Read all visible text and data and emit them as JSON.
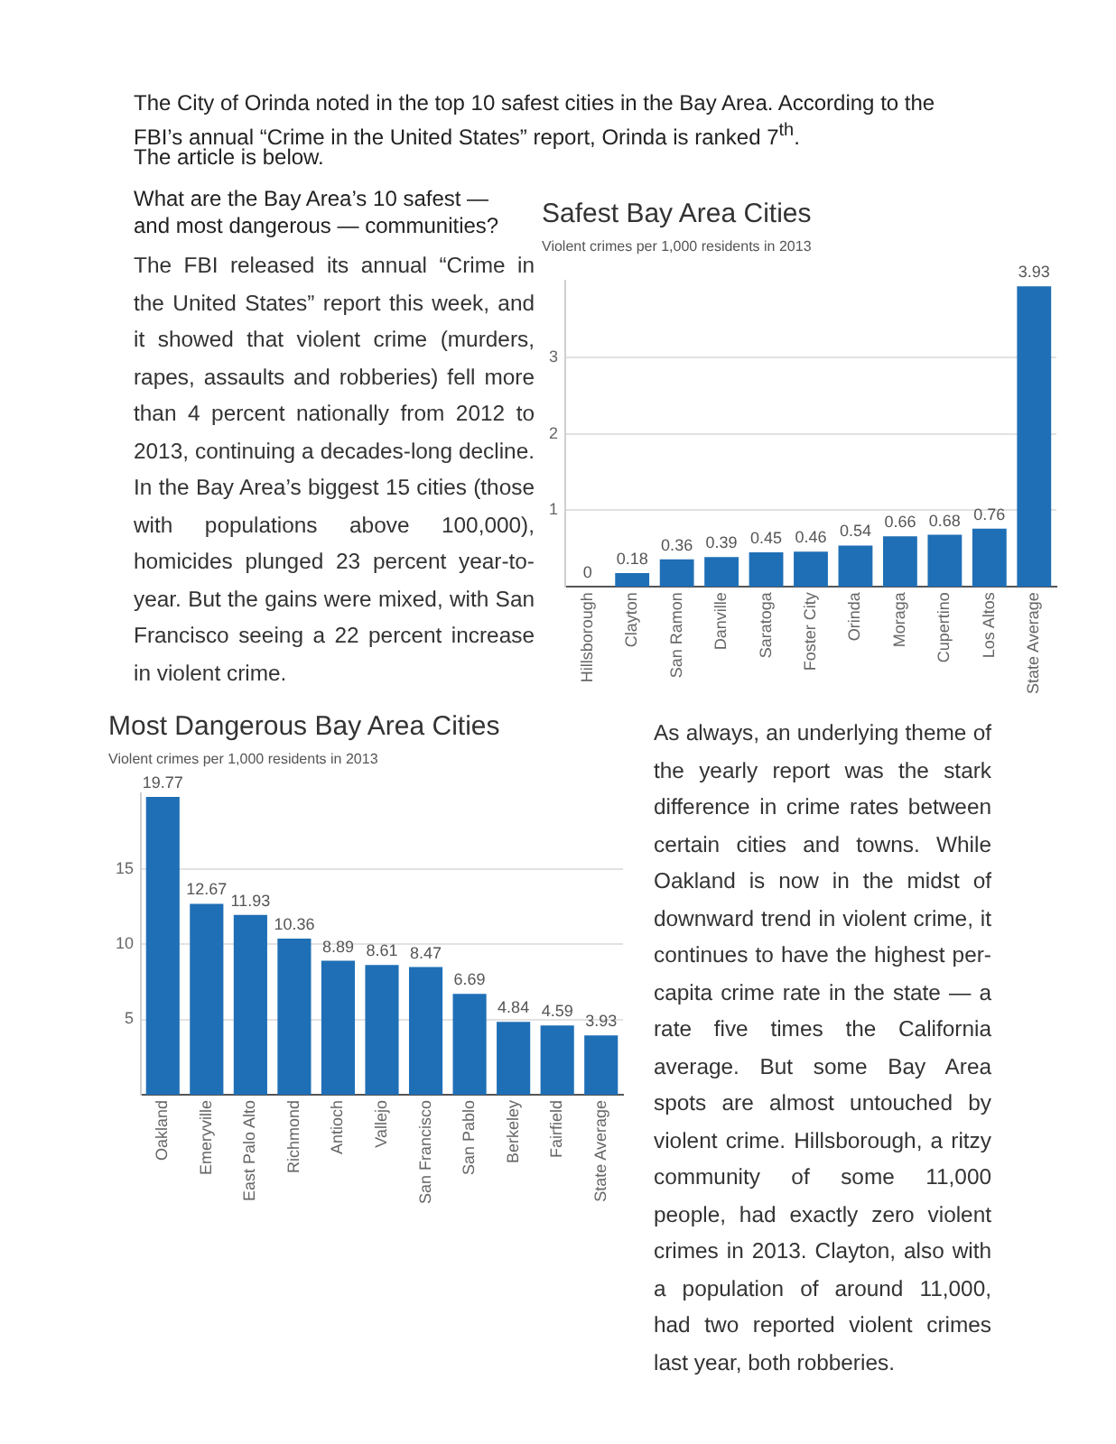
{
  "chart_data": [
    {
      "type": "bar",
      "title": "Safest Bay Area Cities",
      "subtitle": "Violent crimes per 1,000 residents in 2013",
      "categories": [
        "Hillsborough",
        "Clayton",
        "San Ramon",
        "Danville",
        "Saratoga",
        "Foster City",
        "Orinda",
        "Moraga",
        "Cupertino",
        "Los Altos",
        "State Average"
      ],
      "values": [
        0,
        0.18,
        0.36,
        0.39,
        0.45,
        0.46,
        0.54,
        0.66,
        0.68,
        0.76,
        3.93
      ],
      "color": "#1f6fb6",
      "ylim": [
        0,
        4
      ],
      "yticks": [
        1,
        2,
        3
      ],
      "grid": "y",
      "data_labels": true,
      "annotations": [
        "The City of Orinda noted in the top 10 safest cities in the Bay Area.  According to the FBI’s annual “Crime in the United States” report, Orinda is ranked 7$^{th}$.",
        "The article is below.",
        "What are the Bay Area’s 10 safest — and most dangerous — communities?",
        "The FBI released its annual “Crime in the United States” report this week, and it showed that violent crime (murders, rapes, assaults and robberies) fell more than 4 percent nationally from 2012 to 2013, continuing a decades-long decline. In the Bay Area’s biggest 15 cities (those with populations above 100,000), homicides plunged 23 percent year-to-year. But the gains were mixed, with San Francisco seeing a 22 percent increase in violent crime."
      ]
    },
    {
      "type": "bar",
      "title": "Most Dangerous Bay Area Cities",
      "subtitle": "Violent crimes per 1,000 residents in 2013",
      "categories": [
        "Oakland",
        "Emeryville",
        "East Palo Alto",
        "Richmond",
        "Antioch",
        "Vallejo",
        "San Francisco",
        "San Pablo",
        "Berkeley",
        "Fairfield",
        "State Average"
      ],
      "values": [
        19.77,
        12.67,
        11.93,
        10.36,
        8.89,
        8.61,
        8.47,
        6.69,
        4.84,
        4.59,
        3.93
      ],
      "color": "#1f6fb6",
      "ylim": [
        0,
        20
      ],
      "yticks": [
        5,
        10,
        15
      ],
      "grid": "y",
      "data_labels": true,
      "annotations": [
        "As always, an underlying theme of the yearly report was the stark difference in crime rates between certain cities and towns. While Oakland is now in the midst of downward trend in violent crime, it continues to have the highest per-capita crime rate in the state — a rate five times the California average. But some Bay Area spots are almost untouched by violent crime. Hillsborough, a ritzy community of some 11,000 people, had exactly zero violent crimes in 2013. Clayton, also with a population of around 11,000, had two reported violent crimes last year, both robberies."
      ]
    }
  ]
}
